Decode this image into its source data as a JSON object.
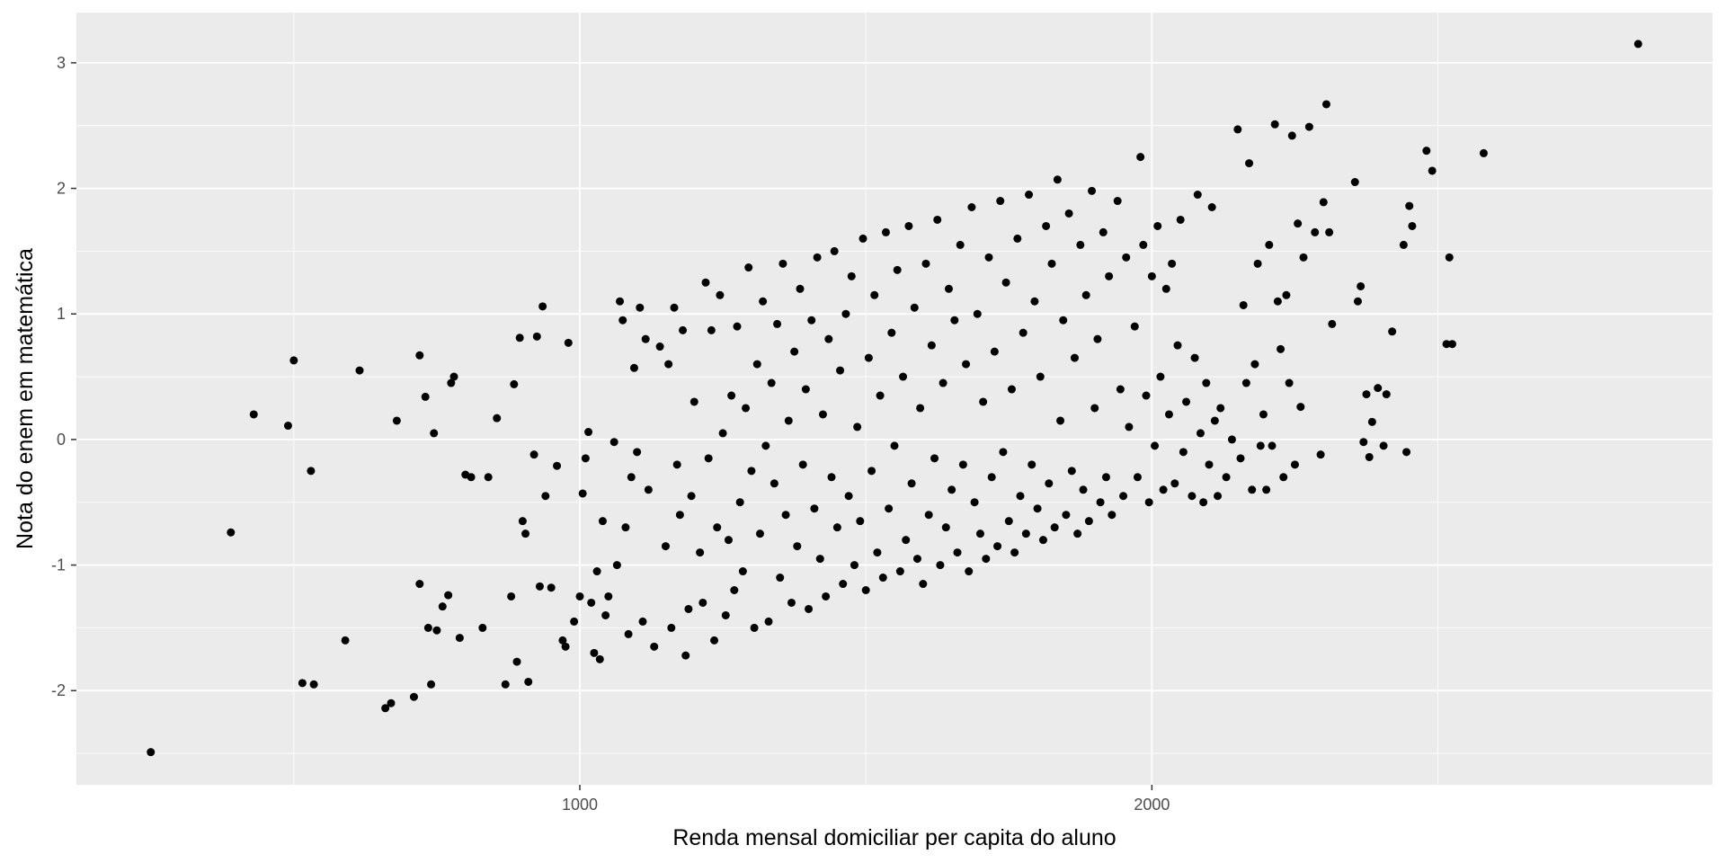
{
  "chart_data": {
    "type": "scatter",
    "title": "",
    "xlabel": "Renda mensal domiciliar per capita do aluno",
    "ylabel": "Nota do enem em matemática",
    "xlim": [
      120,
      2980
    ],
    "ylim": [
      -2.75,
      3.4
    ],
    "x_major_ticks": [
      1000,
      2000
    ],
    "x_minor_ticks": [
      500,
      1500,
      2500
    ],
    "y_major_ticks": [
      -2,
      -1,
      0,
      1,
      2,
      3
    ],
    "y_minor_ticks": [
      -2.5,
      -1.5,
      -0.5,
      0.5,
      1.5,
      2.5
    ],
    "x_tick_labels": [
      "1000",
      "2000"
    ],
    "y_tick_labels": [
      "-2",
      "-1",
      "0",
      "1",
      "2",
      "3"
    ],
    "grid": true,
    "legend": "none",
    "colors": {
      "panel": "#ebebeb",
      "grid": "#ffffff",
      "point": "#000000"
    },
    "points": [
      [
        250,
        -2.49
      ],
      [
        390,
        -0.74
      ],
      [
        430,
        0.2
      ],
      [
        490,
        0.11
      ],
      [
        500,
        0.63
      ],
      [
        515,
        -1.94
      ],
      [
        530,
        -0.25
      ],
      [
        535,
        -1.95
      ],
      [
        590,
        -1.6
      ],
      [
        615,
        0.55
      ],
      [
        660,
        -2.14
      ],
      [
        670,
        -2.1
      ],
      [
        680,
        0.15
      ],
      [
        710,
        -2.05
      ],
      [
        720,
        0.67
      ],
      [
        720,
        -1.15
      ],
      [
        730,
        0.34
      ],
      [
        735,
        -1.5
      ],
      [
        740,
        -1.95
      ],
      [
        745,
        0.05
      ],
      [
        750,
        -1.52
      ],
      [
        760,
        -1.33
      ],
      [
        770,
        -1.24
      ],
      [
        775,
        0.45
      ],
      [
        780,
        0.5
      ],
      [
        790,
        -1.58
      ],
      [
        800,
        -0.28
      ],
      [
        810,
        -0.3
      ],
      [
        830,
        -1.5
      ],
      [
        840,
        -0.3
      ],
      [
        855,
        0.17
      ],
      [
        870,
        -1.95
      ],
      [
        880,
        -1.25
      ],
      [
        885,
        0.44
      ],
      [
        890,
        -1.77
      ],
      [
        895,
        0.81
      ],
      [
        900,
        -0.65
      ],
      [
        905,
        -0.75
      ],
      [
        910,
        -1.93
      ],
      [
        920,
        -0.12
      ],
      [
        925,
        0.82
      ],
      [
        930,
        -1.17
      ],
      [
        935,
        1.06
      ],
      [
        940,
        -0.45
      ],
      [
        950,
        -1.18
      ],
      [
        960,
        -0.21
      ],
      [
        970,
        -1.6
      ],
      [
        975,
        -1.65
      ],
      [
        980,
        0.77
      ],
      [
        990,
        -1.45
      ],
      [
        1000,
        -1.25
      ],
      [
        1005,
        -0.43
      ],
      [
        1010,
        -0.15
      ],
      [
        1015,
        0.06
      ],
      [
        1020,
        -1.3
      ],
      [
        1025,
        -1.7
      ],
      [
        1030,
        -1.05
      ],
      [
        1035,
        -1.75
      ],
      [
        1040,
        -0.65
      ],
      [
        1045,
        -1.4
      ],
      [
        1050,
        -1.25
      ],
      [
        1060,
        -0.02
      ],
      [
        1065,
        -1.0
      ],
      [
        1070,
        1.1
      ],
      [
        1075,
        0.95
      ],
      [
        1080,
        -0.7
      ],
      [
        1085,
        -1.55
      ],
      [
        1090,
        -0.3
      ],
      [
        1095,
        0.57
      ],
      [
        1100,
        -0.1
      ],
      [
        1105,
        1.05
      ],
      [
        1110,
        -1.45
      ],
      [
        1115,
        0.8
      ],
      [
        1120,
        -0.4
      ],
      [
        1130,
        -1.65
      ],
      [
        1140,
        0.74
      ],
      [
        1150,
        -0.85
      ],
      [
        1155,
        0.6
      ],
      [
        1160,
        -1.5
      ],
      [
        1165,
        1.05
      ],
      [
        1170,
        -0.2
      ],
      [
        1175,
        -0.6
      ],
      [
        1180,
        0.87
      ],
      [
        1185,
        -1.72
      ],
      [
        1190,
        -1.35
      ],
      [
        1195,
        -0.45
      ],
      [
        1200,
        0.3
      ],
      [
        1210,
        -0.9
      ],
      [
        1215,
        -1.3
      ],
      [
        1220,
        1.25
      ],
      [
        1225,
        -0.15
      ],
      [
        1230,
        0.87
      ],
      [
        1235,
        -1.6
      ],
      [
        1240,
        -0.7
      ],
      [
        1245,
        1.15
      ],
      [
        1250,
        0.05
      ],
      [
        1255,
        -1.4
      ],
      [
        1260,
        -0.8
      ],
      [
        1265,
        0.35
      ],
      [
        1270,
        -1.2
      ],
      [
        1275,
        0.9
      ],
      [
        1280,
        -0.5
      ],
      [
        1285,
        -1.05
      ],
      [
        1290,
        0.25
      ],
      [
        1295,
        1.37
      ],
      [
        1300,
        -0.25
      ],
      [
        1305,
        -1.5
      ],
      [
        1310,
        0.6
      ],
      [
        1315,
        -0.75
      ],
      [
        1320,
        1.1
      ],
      [
        1325,
        -0.05
      ],
      [
        1330,
        -1.45
      ],
      [
        1335,
        0.45
      ],
      [
        1340,
        -0.35
      ],
      [
        1345,
        0.92
      ],
      [
        1350,
        -1.1
      ],
      [
        1355,
        1.4
      ],
      [
        1360,
        -0.6
      ],
      [
        1365,
        0.15
      ],
      [
        1370,
        -1.3
      ],
      [
        1375,
        0.7
      ],
      [
        1380,
        -0.85
      ],
      [
        1385,
        1.2
      ],
      [
        1390,
        -0.2
      ],
      [
        1395,
        0.4
      ],
      [
        1400,
        -1.35
      ],
      [
        1405,
        0.95
      ],
      [
        1410,
        -0.55
      ],
      [
        1415,
        1.45
      ],
      [
        1420,
        -0.95
      ],
      [
        1425,
        0.2
      ],
      [
        1430,
        -1.25
      ],
      [
        1435,
        0.8
      ],
      [
        1440,
        -0.3
      ],
      [
        1445,
        1.5
      ],
      [
        1450,
        -0.7
      ],
      [
        1455,
        0.55
      ],
      [
        1460,
        -1.15
      ],
      [
        1465,
        1.0
      ],
      [
        1470,
        -0.45
      ],
      [
        1475,
        1.3
      ],
      [
        1480,
        -1.0
      ],
      [
        1485,
        0.1
      ],
      [
        1490,
        -0.65
      ],
      [
        1495,
        1.6
      ],
      [
        1500,
        -1.2
      ],
      [
        1505,
        0.65
      ],
      [
        1510,
        -0.25
      ],
      [
        1515,
        1.15
      ],
      [
        1520,
        -0.9
      ],
      [
        1525,
        0.35
      ],
      [
        1530,
        -1.1
      ],
      [
        1535,
        1.65
      ],
      [
        1540,
        -0.55
      ],
      [
        1545,
        0.85
      ],
      [
        1550,
        -0.05
      ],
      [
        1555,
        1.35
      ],
      [
        1560,
        -1.05
      ],
      [
        1565,
        0.5
      ],
      [
        1570,
        -0.8
      ],
      [
        1575,
        1.7
      ],
      [
        1580,
        -0.35
      ],
      [
        1585,
        1.05
      ],
      [
        1590,
        -0.95
      ],
      [
        1595,
        0.25
      ],
      [
        1600,
        -1.15
      ],
      [
        1605,
        1.4
      ],
      [
        1610,
        -0.6
      ],
      [
        1615,
        0.75
      ],
      [
        1620,
        -0.15
      ],
      [
        1625,
        1.75
      ],
      [
        1630,
        -1.0
      ],
      [
        1635,
        0.45
      ],
      [
        1640,
        -0.7
      ],
      [
        1645,
        1.2
      ],
      [
        1650,
        -0.4
      ],
      [
        1655,
        0.95
      ],
      [
        1660,
        -0.9
      ],
      [
        1665,
        1.55
      ],
      [
        1670,
        -0.2
      ],
      [
        1675,
        0.6
      ],
      [
        1680,
        -1.05
      ],
      [
        1685,
        1.85
      ],
      [
        1690,
        -0.5
      ],
      [
        1695,
        1.0
      ],
      [
        1700,
        -0.75
      ],
      [
        1705,
        0.3
      ],
      [
        1710,
        -0.95
      ],
      [
        1715,
        1.45
      ],
      [
        1720,
        -0.3
      ],
      [
        1725,
        0.7
      ],
      [
        1730,
        -0.85
      ],
      [
        1735,
        1.9
      ],
      [
        1740,
        -0.1
      ],
      [
        1745,
        1.25
      ],
      [
        1750,
        -0.65
      ],
      [
        1755,
        0.4
      ],
      [
        1760,
        -0.9
      ],
      [
        1765,
        1.6
      ],
      [
        1770,
        -0.45
      ],
      [
        1775,
        0.85
      ],
      [
        1780,
        -0.75
      ],
      [
        1785,
        1.95
      ],
      [
        1790,
        -0.2
      ],
      [
        1795,
        1.1
      ],
      [
        1800,
        -0.55
      ],
      [
        1805,
        0.5
      ],
      [
        1810,
        -0.8
      ],
      [
        1815,
        1.7
      ],
      [
        1820,
        -0.35
      ],
      [
        1825,
        1.4
      ],
      [
        1830,
        -0.7
      ],
      [
        1835,
        2.07
      ],
      [
        1840,
        0.15
      ],
      [
        1845,
        0.95
      ],
      [
        1850,
        -0.6
      ],
      [
        1855,
        1.8
      ],
      [
        1860,
        -0.25
      ],
      [
        1865,
        0.65
      ],
      [
        1870,
        -0.75
      ],
      [
        1875,
        1.55
      ],
      [
        1880,
        -0.4
      ],
      [
        1885,
        1.15
      ],
      [
        1890,
        -0.65
      ],
      [
        1895,
        1.98
      ],
      [
        1900,
        0.25
      ],
      [
        1905,
        0.8
      ],
      [
        1910,
        -0.5
      ],
      [
        1915,
        1.65
      ],
      [
        1920,
        -0.3
      ],
      [
        1925,
        1.3
      ],
      [
        1930,
        -0.6
      ],
      [
        1940,
        1.9
      ],
      [
        1945,
        0.4
      ],
      [
        1950,
        -0.45
      ],
      [
        1955,
        1.45
      ],
      [
        1960,
        0.1
      ],
      [
        1970,
        0.9
      ],
      [
        1975,
        -0.3
      ],
      [
        1980,
        2.25
      ],
      [
        1985,
        1.55
      ],
      [
        1990,
        0.35
      ],
      [
        1995,
        -0.5
      ],
      [
        2000,
        1.3
      ],
      [
        2005,
        -0.05
      ],
      [
        2010,
        1.7
      ],
      [
        2015,
        0.5
      ],
      [
        2020,
        -0.4
      ],
      [
        2025,
        1.2
      ],
      [
        2030,
        0.2
      ],
      [
        2035,
        1.4
      ],
      [
        2040,
        -0.35
      ],
      [
        2045,
        0.75
      ],
      [
        2050,
        1.75
      ],
      [
        2055,
        -0.1
      ],
      [
        2060,
        0.3
      ],
      [
        2070,
        -0.45
      ],
      [
        2075,
        0.65
      ],
      [
        2080,
        1.95
      ],
      [
        2085,
        0.05
      ],
      [
        2090,
        -0.5
      ],
      [
        2095,
        0.45
      ],
      [
        2100,
        -0.2
      ],
      [
        2105,
        1.85
      ],
      [
        2110,
        0.15
      ],
      [
        2115,
        -0.45
      ],
      [
        2120,
        0.25
      ],
      [
        2130,
        -0.3
      ],
      [
        2140,
        0.0
      ],
      [
        2150,
        2.47
      ],
      [
        2155,
        -0.15
      ],
      [
        2160,
        1.07
      ],
      [
        2165,
        0.45
      ],
      [
        2170,
        2.2
      ],
      [
        2175,
        -0.4
      ],
      [
        2180,
        0.6
      ],
      [
        2185,
        1.4
      ],
      [
        2190,
        -0.05
      ],
      [
        2195,
        0.2
      ],
      [
        2200,
        -0.4
      ],
      [
        2205,
        1.55
      ],
      [
        2210,
        -0.05
      ],
      [
        2215,
        2.51
      ],
      [
        2220,
        1.1
      ],
      [
        2225,
        0.72
      ],
      [
        2230,
        -0.3
      ],
      [
        2235,
        1.15
      ],
      [
        2240,
        0.45
      ],
      [
        2245,
        2.42
      ],
      [
        2250,
        -0.2
      ],
      [
        2255,
        1.72
      ],
      [
        2260,
        0.26
      ],
      [
        2265,
        1.45
      ],
      [
        2275,
        2.49
      ],
      [
        2285,
        1.65
      ],
      [
        2295,
        -0.12
      ],
      [
        2300,
        1.89
      ],
      [
        2305,
        2.67
      ],
      [
        2310,
        1.65
      ],
      [
        2315,
        0.92
      ],
      [
        2355,
        2.05
      ],
      [
        2360,
        1.1
      ],
      [
        2365,
        1.22
      ],
      [
        2370,
        -0.02
      ],
      [
        2375,
        0.36
      ],
      [
        2380,
        -0.14
      ],
      [
        2385,
        0.14
      ],
      [
        2395,
        0.41
      ],
      [
        2405,
        -0.05
      ],
      [
        2410,
        0.36
      ],
      [
        2420,
        0.86
      ],
      [
        2440,
        1.55
      ],
      [
        2445,
        -0.1
      ],
      [
        2450,
        1.86
      ],
      [
        2455,
        1.7
      ],
      [
        2480,
        2.3
      ],
      [
        2490,
        2.14
      ],
      [
        2515,
        0.76
      ],
      [
        2520,
        1.45
      ],
      [
        2525,
        0.76
      ],
      [
        2580,
        2.28
      ],
      [
        2850,
        3.15
      ]
    ]
  }
}
